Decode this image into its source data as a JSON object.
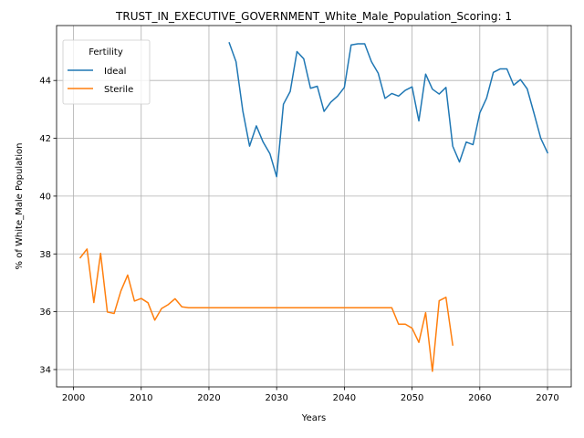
{
  "chart_data": {
    "type": "line",
    "title": "TRUST_IN_EXECUTIVE_GOVERNMENT_White_Male_Population_Scoring: 1",
    "xlabel": "Years",
    "ylabel": "% of White_Male Population",
    "xlim": [
      1997.5,
      2073.5
    ],
    "ylim": [
      33.4,
      45.9
    ],
    "xticks": [
      2000,
      2010,
      2020,
      2030,
      2040,
      2050,
      2060,
      2070
    ],
    "yticks": [
      34,
      36,
      38,
      40,
      42,
      44
    ],
    "grid": true,
    "legend": {
      "title": "Fertility",
      "placement": "upper-left"
    },
    "series": [
      {
        "name": "Ideal",
        "color": "#1f77b4",
        "x": [
          2023,
          2024,
          2025,
          2026,
          2027,
          2028,
          2029,
          2030,
          2031,
          2032,
          2033,
          2034,
          2035,
          2036,
          2037,
          2038,
          2039,
          2040,
          2041,
          2042,
          2043,
          2044,
          2045,
          2046,
          2047,
          2048,
          2049,
          2050,
          2051,
          2052,
          2053,
          2054,
          2055,
          2056,
          2057,
          2058,
          2059,
          2060,
          2061,
          2062,
          2063,
          2064,
          2065,
          2066,
          2067,
          2068,
          2069,
          2070
        ],
        "y": [
          45.3,
          44.65,
          42.95,
          41.73,
          42.43,
          41.87,
          41.47,
          40.67,
          43.18,
          43.62,
          45.0,
          44.75,
          43.73,
          43.8,
          42.93,
          43.25,
          43.46,
          43.76,
          45.23,
          45.27,
          45.27,
          44.65,
          44.25,
          43.38,
          43.55,
          43.46,
          43.66,
          43.78,
          42.6,
          44.22,
          43.7,
          43.53,
          43.76,
          41.73,
          41.18,
          41.87,
          41.78,
          42.88,
          43.39,
          44.28,
          44.4,
          44.4,
          43.84,
          44.03,
          43.71,
          42.87,
          42.0,
          41.5
        ]
      },
      {
        "name": "Sterile",
        "color": "#ff7f0e",
        "x": [
          2001,
          2002,
          2003,
          2004,
          2005,
          2006,
          2007,
          2008,
          2009,
          2010,
          2011,
          2012,
          2013,
          2014,
          2015,
          2016,
          2017,
          2018,
          2019,
          2020,
          2021,
          2022,
          2023,
          2024,
          2025,
          2026,
          2027,
          2028,
          2029,
          2030,
          2031,
          2032,
          2033,
          2034,
          2035,
          2036,
          2037,
          2038,
          2039,
          2040,
          2041,
          2042,
          2043,
          2044,
          2045,
          2046,
          2047,
          2048,
          2049,
          2050,
          2051,
          2052,
          2053,
          2054,
          2055,
          2056
        ],
        "y": [
          37.87,
          38.17,
          36.32,
          38.02,
          35.99,
          35.94,
          36.72,
          37.27,
          36.37,
          36.46,
          36.31,
          35.71,
          36.11,
          36.25,
          36.45,
          36.17,
          36.14,
          36.14,
          36.14,
          36.14,
          36.14,
          36.14,
          36.14,
          36.14,
          36.14,
          36.14,
          36.14,
          36.14,
          36.14,
          36.14,
          36.14,
          36.14,
          36.14,
          36.14,
          36.14,
          36.14,
          36.14,
          36.14,
          36.14,
          36.14,
          36.14,
          36.14,
          36.14,
          36.14,
          36.14,
          36.14,
          36.14,
          35.57,
          35.57,
          35.43,
          34.94,
          35.97,
          33.94,
          36.38,
          36.5,
          34.85
        ]
      }
    ]
  }
}
